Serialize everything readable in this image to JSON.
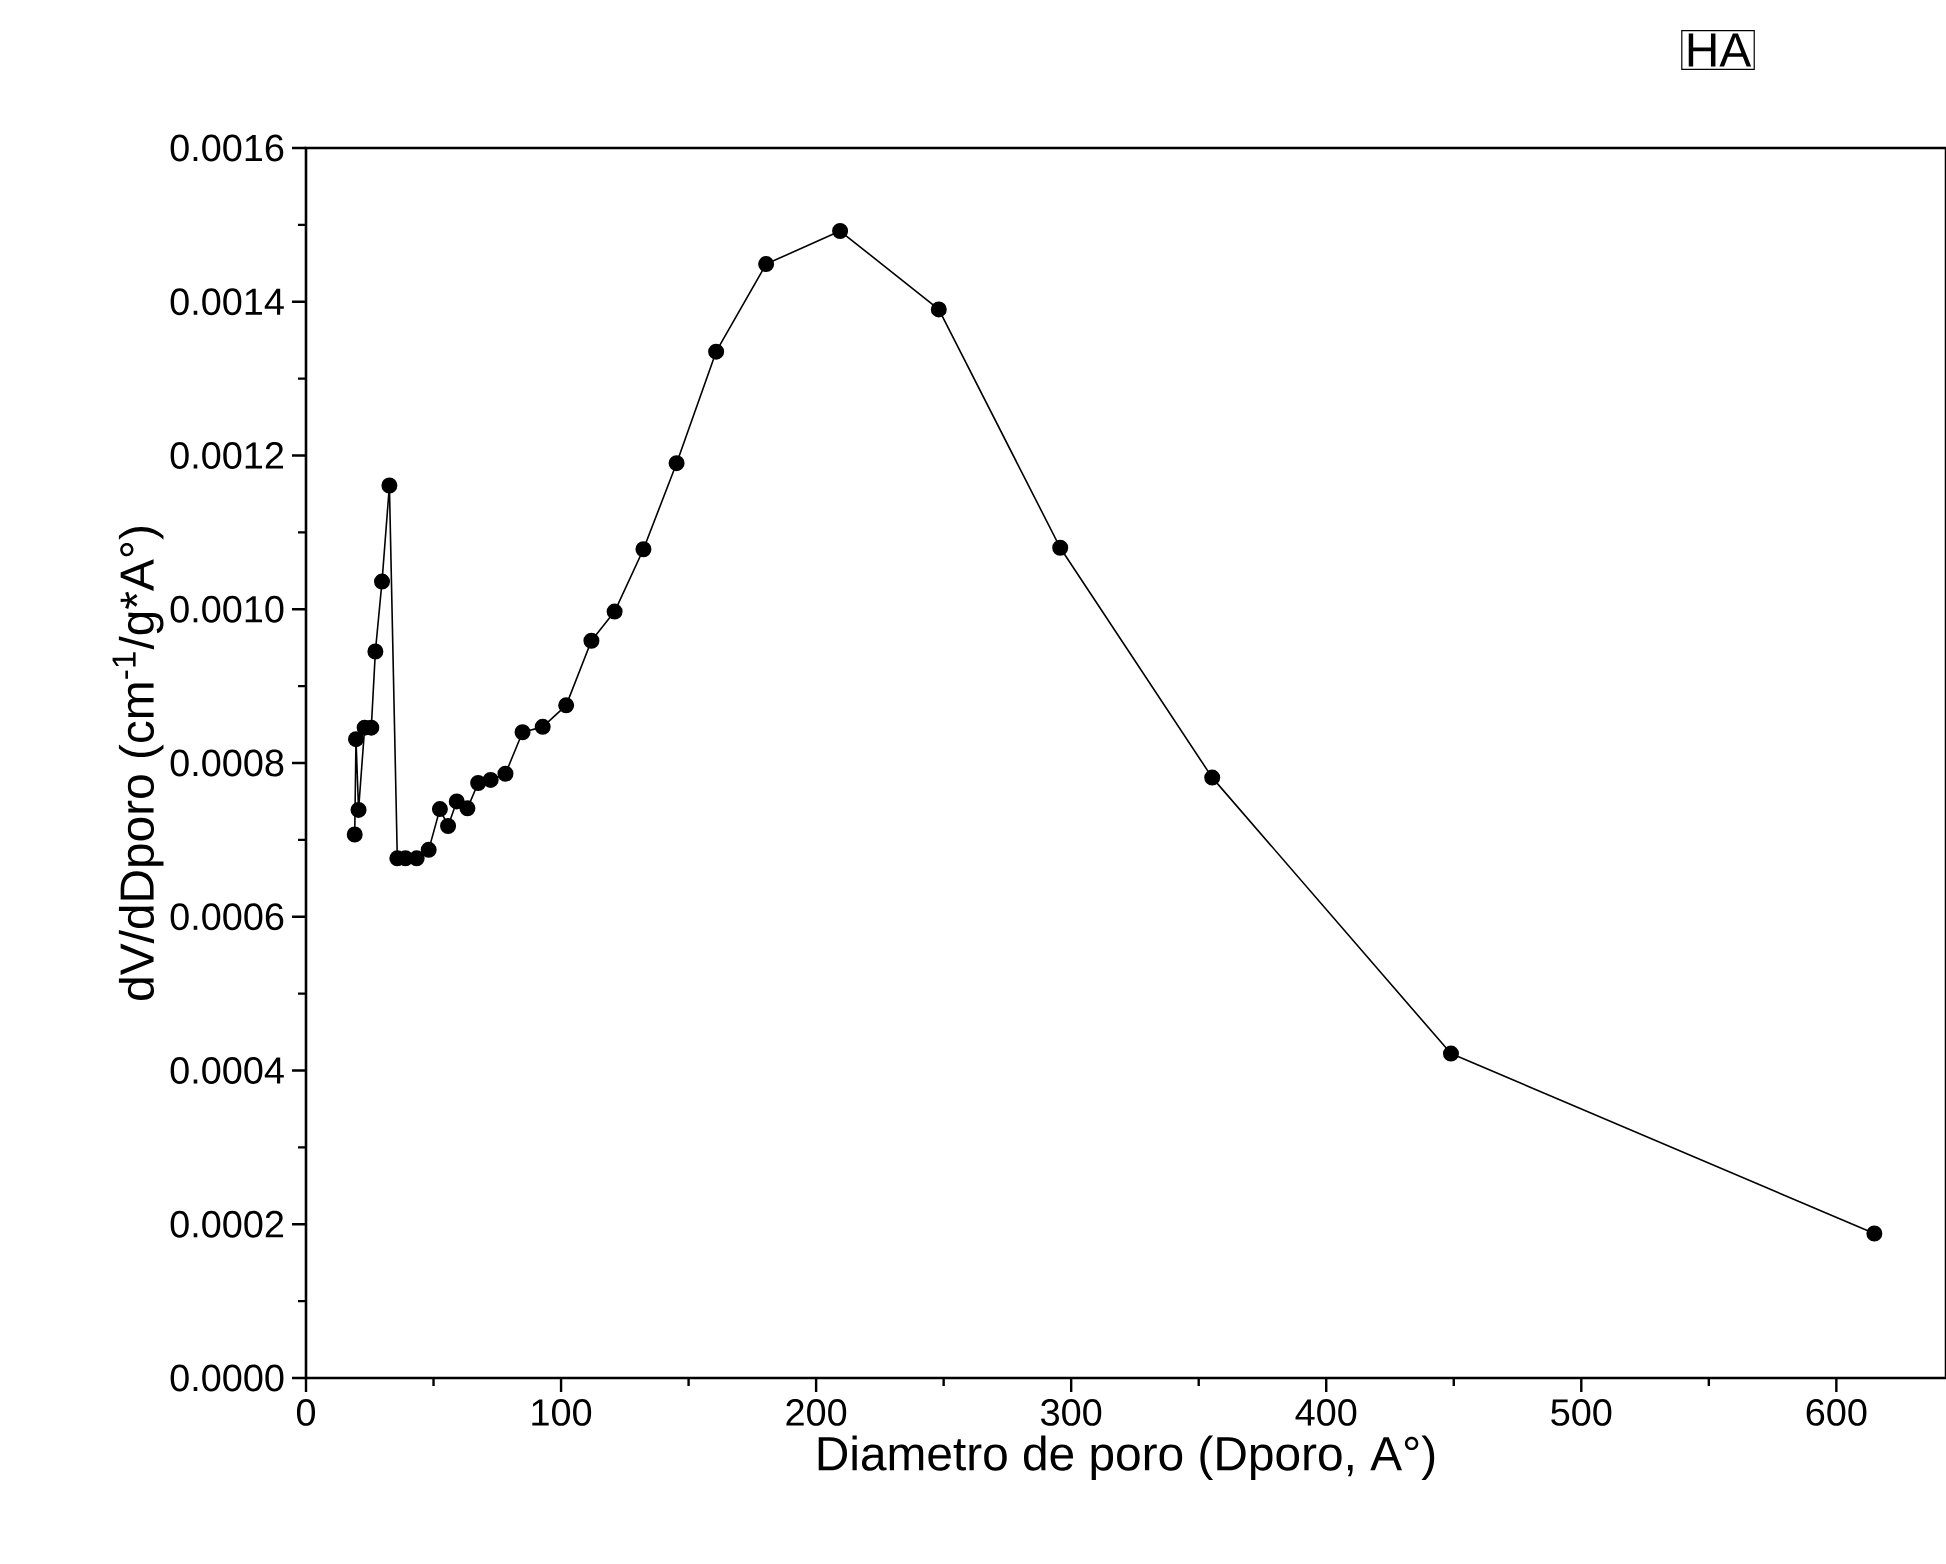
{
  "chart_data": {
    "type": "line",
    "xlabel": "Diametro de poro (Dporo, A°)",
    "ylabel": "dV/dDporo (cm$^{-1}$/g*A°)",
    "annotations": [
      "HA"
    ],
    "x": [
      19.1,
      19.6,
      20.6,
      23.0,
      25.6,
      27.2,
      29.8,
      32.7,
      35.8,
      39.0,
      43.4,
      48.1,
      52.5,
      55.7,
      59.1,
      63.3,
      67.5,
      72.4,
      78.2,
      84.9,
      92.8,
      102.0,
      111.9,
      121.0,
      132.3,
      145.3,
      160.8,
      180.4,
      209.4,
      248.1,
      295.7,
      355.3,
      448.9,
      614.9
    ],
    "series": [
      {
        "color": "#000000",
        "values": [
          0.000707,
          0.000831,
          0.000739,
          0.000846,
          0.000846,
          0.000945,
          0.001036,
          0.001161,
          0.000676,
          0.000676,
          0.000676,
          0.000687,
          0.00074,
          0.000718,
          0.00075,
          0.000741,
          0.000774,
          0.000778,
          0.000786,
          0.00084,
          0.000847,
          0.000875,
          0.000959,
          0.000997,
          0.001078,
          0.00119,
          0.001335,
          0.001449,
          0.001492,
          0.00139,
          0.00108,
          0.000781,
          0.000422,
          0.000188
        ]
      }
    ],
    "xlim": [
      0,
      643
    ],
    "xticks": [
      0,
      100,
      200,
      300,
      400,
      500,
      600
    ],
    "ylim": [
      0,
      0.0016
    ],
    "yticks": [
      {
        "value": 0,
        "label": "0.0000"
      },
      0.0002,
      0.0004,
      0.0006,
      0.0008,
      {
        "value": 0.001,
        "label": "0.0010"
      },
      0.0012,
      0.0014,
      0.0016
    ],
    "grid": false,
    "marker": "circle",
    "line_style": "solid"
  }
}
